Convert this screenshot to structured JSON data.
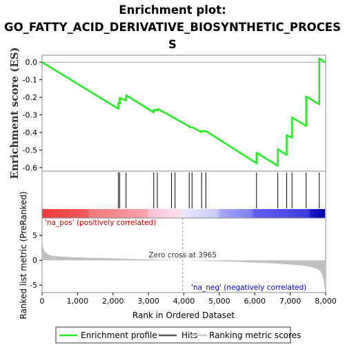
{
  "chart_data": {
    "type": "line",
    "title_lines": [
      "Enrichment plot:",
      "GO_FATTY_ACID_DERIVATIVE_BIOSYNTHETIC_PROCES",
      "S"
    ],
    "ylabel_top": "Enrichment score (ES)",
    "ylabel_bottom": "Ranked list metric (PreRanked)",
    "xlabel": "Rank in Ordered Dataset",
    "xlim": [
      0,
      8000
    ],
    "x_ticks": [
      0,
      1000,
      2000,
      3000,
      4000,
      5000,
      6000,
      7000,
      8000
    ],
    "x_tick_labels": [
      "0",
      "1,000",
      "2,000",
      "3,000",
      "4,000",
      "5,000",
      "6,000",
      "7,000",
      "8,000"
    ],
    "es_ylim": [
      -0.62,
      0.04
    ],
    "es_ticks": [
      0.0,
      -0.1,
      -0.2,
      -0.3,
      -0.4,
      -0.5,
      -0.6
    ],
    "es_tick_labels": [
      "0.0",
      "-0.1",
      "-0.2",
      "-0.3",
      "-0.4",
      "-0.5",
      "-0.6"
    ],
    "metric_ylim": [
      -6.5,
      8.5
    ],
    "metric_ticks": [
      5,
      0,
      -5
    ],
    "metric_tick_labels": [
      "5",
      "0",
      "-5"
    ],
    "hits": [
      2150,
      2190,
      2370,
      3150,
      3250,
      3650,
      3750,
      4150,
      4230,
      4500,
      4620,
      6050,
      6650,
      6900,
      7050,
      7450,
      7820
    ],
    "es_profile": {
      "x": [
        0,
        2150,
        2150,
        2190,
        2190,
        2370,
        2370,
        3150,
        3150,
        3250,
        3250,
        3650,
        3650,
        3750,
        3750,
        4150,
        4150,
        4230,
        4230,
        4500,
        4500,
        4620,
        4620,
        6050,
        6050,
        6650,
        6650,
        6900,
        6900,
        7050,
        7050,
        7450,
        7450,
        7820,
        7820,
        7980
      ],
      "y": [
        0.0,
        -0.265,
        -0.232,
        -0.235,
        -0.203,
        -0.218,
        -0.188,
        -0.286,
        -0.27,
        -0.275,
        -0.265,
        -0.308,
        -0.312,
        -0.318,
        -0.32,
        -0.365,
        -0.368,
        -0.372,
        -0.37,
        -0.398,
        -0.392,
        -0.394,
        -0.392,
        -0.575,
        -0.515,
        -0.59,
        -0.495,
        -0.528,
        -0.415,
        -0.43,
        -0.315,
        -0.362,
        -0.195,
        -0.24,
        0.022,
        0.0
      ]
    },
    "metric_profile": {
      "x": [
        0,
        10,
        30,
        60,
        100,
        160,
        250,
        400,
        600,
        900,
        1300,
        1800,
        2400,
        3000,
        3500,
        3965,
        4500,
        5000,
        5500,
        6000,
        6500,
        7000,
        7300,
        7550,
        7750,
        7850,
        7900,
        7940,
        7960,
        7980
      ],
      "y": [
        5.0,
        3.6,
        2.6,
        1.9,
        1.5,
        1.2,
        0.95,
        0.82,
        0.72,
        0.62,
        0.52,
        0.42,
        0.3,
        0.18,
        0.08,
        0.0,
        -0.1,
        -0.2,
        -0.32,
        -0.45,
        -0.62,
        -0.85,
        -1.05,
        -1.3,
        -1.7,
        -2.2,
        -2.8,
        -3.8,
        -4.8,
        -6.1
      ]
    },
    "zero_cross_label": "Zero cross at 3965",
    "zero_cross_x": 3965,
    "pos_label": "'na_pos' (positively correlated)",
    "neg_label": "'na_neg' (negatively correlated)",
    "colors": {
      "es_line": "#22ee22",
      "hit": "#000000",
      "metric_fill": "#c0c0c0",
      "pos_text": "#cc0000",
      "neg_text": "#0000cc",
      "zero_line": "#999999"
    },
    "legend": [
      {
        "label": "Enrichment profile",
        "color": "#22ee22"
      },
      {
        "label": "Hits",
        "color": "#555555"
      },
      {
        "label": "Ranking metric scores",
        "color": "#cccccc"
      }
    ]
  }
}
